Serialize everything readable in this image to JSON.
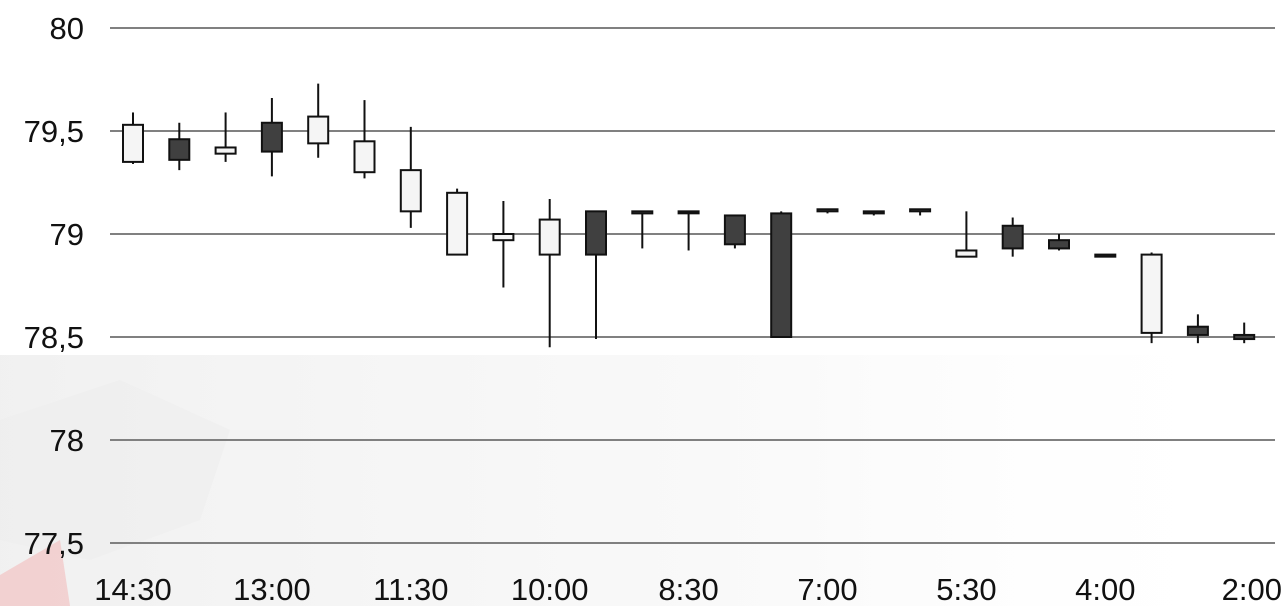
{
  "chart_data": {
    "type": "candlestick",
    "title": "",
    "xlabel": "",
    "ylabel": "",
    "ylim": [
      77.5,
      80
    ],
    "yticks": [
      77.5,
      78,
      78.5,
      79,
      79.5,
      80
    ],
    "ytick_labels": [
      "77,5",
      "78",
      "78,5",
      "79",
      "79,5",
      "80"
    ],
    "xtick_labels": [
      "14:30",
      "13:00",
      "11:30",
      "10:00",
      "8:30",
      "7:00",
      "5:30",
      "4:00",
      "2:00"
    ],
    "xtick_candle_index": [
      0,
      3,
      6,
      9,
      12,
      15,
      18,
      21,
      24
    ],
    "grid": true,
    "colors": {
      "up": "#f5f5f5",
      "down": "#404040",
      "outline": "#111111",
      "grid": "#808080"
    },
    "candles": [
      {
        "open": 79.35,
        "close": 79.53,
        "high": 79.59,
        "low": 79.34
      },
      {
        "open": 79.46,
        "close": 79.36,
        "high": 79.54,
        "low": 79.31
      },
      {
        "open": 79.39,
        "close": 79.42,
        "high": 79.59,
        "low": 79.35
      },
      {
        "open": 79.54,
        "close": 79.4,
        "high": 79.66,
        "low": 79.28
      },
      {
        "open": 79.44,
        "close": 79.57,
        "high": 79.73,
        "low": 79.37
      },
      {
        "open": 79.3,
        "close": 79.45,
        "high": 79.65,
        "low": 79.27
      },
      {
        "open": 79.11,
        "close": 79.31,
        "high": 79.52,
        "low": 79.03
      },
      {
        "open": 78.9,
        "close": 79.2,
        "high": 79.22,
        "low": 78.9
      },
      {
        "open": 78.97,
        "close": 79.0,
        "high": 79.16,
        "low": 78.74
      },
      {
        "open": 78.9,
        "close": 79.07,
        "high": 79.17,
        "low": 78.45
      },
      {
        "open": 79.11,
        "close": 78.9,
        "high": 79.11,
        "low": 78.49
      },
      {
        "open": 79.1,
        "close": 79.11,
        "high": 79.11,
        "low": 78.93
      },
      {
        "open": 79.11,
        "close": 79.11,
        "high": 79.11,
        "low": 78.92
      },
      {
        "open": 79.09,
        "close": 78.95,
        "high": 79.09,
        "low": 78.93
      },
      {
        "open": 79.1,
        "close": 78.5,
        "high": 79.11,
        "low": 78.5
      },
      {
        "open": 79.11,
        "close": 79.12,
        "high": 79.12,
        "low": 79.1
      },
      {
        "open": 79.11,
        "close": 79.1,
        "high": 79.11,
        "low": 79.09
      },
      {
        "open": 79.11,
        "close": 79.12,
        "high": 79.12,
        "low": 79.09
      },
      {
        "open": 78.89,
        "close": 78.92,
        "high": 79.11,
        "low": 78.89
      },
      {
        "open": 79.04,
        "close": 78.93,
        "high": 79.08,
        "low": 78.89
      },
      {
        "open": 78.97,
        "close": 78.93,
        "high": 79.0,
        "low": 78.92
      },
      {
        "open": 78.9,
        "close": 78.89,
        "high": 78.9,
        "low": 78.89
      },
      {
        "open": 78.52,
        "close": 78.9,
        "high": 78.91,
        "low": 78.47
      },
      {
        "open": 78.55,
        "close": 78.51,
        "high": 78.61,
        "low": 78.47
      },
      {
        "open": 78.51,
        "close": 78.49,
        "high": 78.57,
        "low": 78.47
      }
    ]
  }
}
